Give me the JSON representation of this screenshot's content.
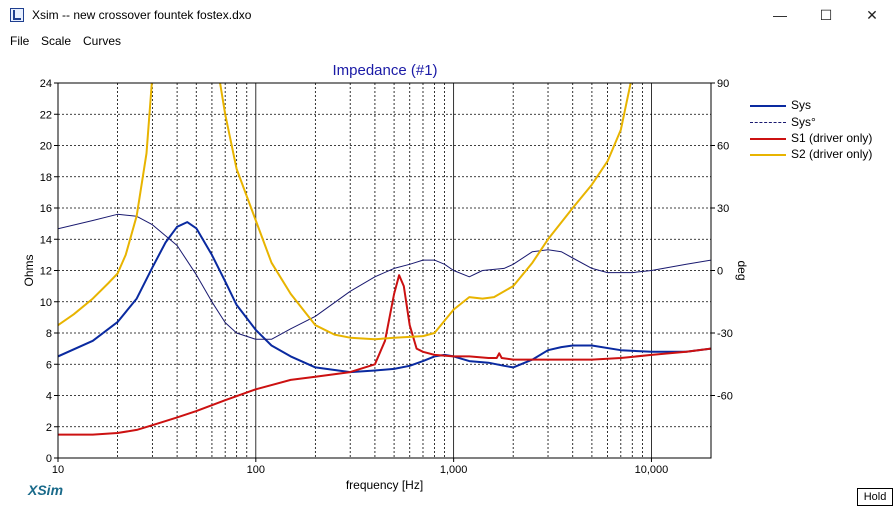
{
  "window": {
    "title": "Xsim -- new crossover fountek fostex.dxo",
    "minimize_glyph": "—",
    "maximize_glyph": "☐",
    "close_glyph": "✕"
  },
  "menu": [
    "File",
    "Scale",
    "Curves"
  ],
  "brand": "XSim",
  "hold_label": "Hold",
  "colors": {
    "sys": "#0a2aa0",
    "sys_phase": "#1a1a70",
    "s1": "#cc1111",
    "s2": "#e8b400",
    "grid": "#000000",
    "title": "#1a1aa6"
  },
  "chart_data": {
    "type": "line",
    "title": "Impedance (#1)",
    "xlabel": "frequency [Hz]",
    "ylabel": "Ohms",
    "y2label": "deg",
    "x_scale": "log",
    "xlim": [
      10,
      20000
    ],
    "ylim": [
      0,
      24
    ],
    "y2lim": [
      -90,
      90
    ],
    "x_tick_labels": [
      {
        "value": 10,
        "label": "10"
      },
      {
        "value": 100,
        "label": "100"
      },
      {
        "value": 1000,
        "label": "1,000"
      },
      {
        "value": 10000,
        "label": "10,000"
      }
    ],
    "y_ticks": [
      0,
      2,
      4,
      6,
      8,
      10,
      12,
      14,
      16,
      18,
      20,
      22,
      24
    ],
    "y2_ticks": [
      -60,
      -30,
      0,
      30,
      60,
      90
    ],
    "grid": true,
    "legend_position": "right",
    "legend": [
      "Sys",
      "Sys°",
      "S1 (driver only)",
      "S2 (driver only)"
    ],
    "series": [
      {
        "name": "Sys",
        "axis": "left",
        "points": [
          [
            10,
            6.5
          ],
          [
            15,
            7.5
          ],
          [
            20,
            8.7
          ],
          [
            25,
            10.2
          ],
          [
            30,
            12.2
          ],
          [
            35,
            13.8
          ],
          [
            40,
            14.8
          ],
          [
            45,
            15.1
          ],
          [
            50,
            14.7
          ],
          [
            60,
            13.0
          ],
          [
            70,
            11.3
          ],
          [
            80,
            9.8
          ],
          [
            100,
            8.2
          ],
          [
            120,
            7.2
          ],
          [
            150,
            6.5
          ],
          [
            200,
            5.8
          ],
          [
            300,
            5.5
          ],
          [
            400,
            5.6
          ],
          [
            500,
            5.7
          ],
          [
            600,
            5.9
          ],
          [
            700,
            6.2
          ],
          [
            800,
            6.5
          ],
          [
            900,
            6.6
          ],
          [
            1000,
            6.5
          ],
          [
            1200,
            6.2
          ],
          [
            1500,
            6.1
          ],
          [
            1800,
            5.9
          ],
          [
            2000,
            5.8
          ],
          [
            2500,
            6.3
          ],
          [
            3000,
            6.9
          ],
          [
            3500,
            7.1
          ],
          [
            4000,
            7.2
          ],
          [
            5000,
            7.2
          ],
          [
            7000,
            6.9
          ],
          [
            10000,
            6.8
          ],
          [
            15000,
            6.8
          ],
          [
            20000,
            7.0
          ]
        ]
      },
      {
        "name": "Sys°",
        "axis": "right",
        "points": [
          [
            10,
            20
          ],
          [
            15,
            24
          ],
          [
            20,
            27
          ],
          [
            25,
            26
          ],
          [
            30,
            22
          ],
          [
            40,
            12
          ],
          [
            50,
            -2
          ],
          [
            60,
            -15
          ],
          [
            70,
            -25
          ],
          [
            80,
            -30
          ],
          [
            100,
            -33
          ],
          [
            120,
            -33
          ],
          [
            150,
            -28
          ],
          [
            200,
            -22
          ],
          [
            300,
            -10
          ],
          [
            400,
            -3
          ],
          [
            500,
            1
          ],
          [
            600,
            3
          ],
          [
            700,
            5
          ],
          [
            800,
            5
          ],
          [
            900,
            3
          ],
          [
            1000,
            0
          ],
          [
            1200,
            -3
          ],
          [
            1400,
            0
          ],
          [
            1800,
            1
          ],
          [
            2000,
            3
          ],
          [
            2500,
            9
          ],
          [
            3000,
            10
          ],
          [
            3500,
            9
          ],
          [
            4000,
            6
          ],
          [
            5000,
            1
          ],
          [
            6000,
            -1
          ],
          [
            8000,
            -1
          ],
          [
            10000,
            0
          ],
          [
            15000,
            3
          ],
          [
            20000,
            5
          ]
        ]
      },
      {
        "name": "S1 (driver only)",
        "axis": "left",
        "points": [
          [
            10,
            1.5
          ],
          [
            15,
            1.5
          ],
          [
            20,
            1.6
          ],
          [
            25,
            1.8
          ],
          [
            30,
            2.1
          ],
          [
            40,
            2.6
          ],
          [
            50,
            3.0
          ],
          [
            70,
            3.7
          ],
          [
            100,
            4.4
          ],
          [
            150,
            5.0
          ],
          [
            200,
            5.2
          ],
          [
            300,
            5.5
          ],
          [
            400,
            6.0
          ],
          [
            450,
            7.5
          ],
          [
            500,
            10.5
          ],
          [
            530,
            11.7
          ],
          [
            560,
            11.0
          ],
          [
            600,
            8.5
          ],
          [
            650,
            7.0
          ],
          [
            700,
            6.8
          ],
          [
            800,
            6.6
          ],
          [
            1000,
            6.5
          ],
          [
            1200,
            6.5
          ],
          [
            1500,
            6.4
          ],
          [
            1650,
            6.4
          ],
          [
            1700,
            6.7
          ],
          [
            1750,
            6.4
          ],
          [
            2000,
            6.3
          ],
          [
            3000,
            6.3
          ],
          [
            5000,
            6.3
          ],
          [
            7000,
            6.4
          ],
          [
            10000,
            6.6
          ],
          [
            15000,
            6.8
          ],
          [
            20000,
            7.0
          ]
        ]
      },
      {
        "name": "S2 (driver only)",
        "axis": "left",
        "points": [
          [
            10,
            8.5
          ],
          [
            12,
            9.2
          ],
          [
            15,
            10.2
          ],
          [
            18,
            11.2
          ],
          [
            20,
            11.8
          ],
          [
            22,
            13.0
          ],
          [
            25,
            15.5
          ],
          [
            28,
            19.5
          ],
          [
            30,
            24.5
          ],
          [
            65,
            24.5
          ],
          [
            70,
            22.0
          ],
          [
            80,
            18.5
          ],
          [
            100,
            15.2
          ],
          [
            120,
            12.5
          ],
          [
            150,
            10.5
          ],
          [
            200,
            8.5
          ],
          [
            250,
            7.9
          ],
          [
            300,
            7.7
          ],
          [
            400,
            7.6
          ],
          [
            500,
            7.7
          ],
          [
            700,
            7.8
          ],
          [
            800,
            8.0
          ],
          [
            1000,
            9.5
          ],
          [
            1200,
            10.3
          ],
          [
            1400,
            10.2
          ],
          [
            1600,
            10.3
          ],
          [
            2000,
            11.0
          ],
          [
            2500,
            12.5
          ],
          [
            3000,
            14.0
          ],
          [
            4000,
            16.0
          ],
          [
            5000,
            17.5
          ],
          [
            6000,
            19.0
          ],
          [
            7000,
            21.0
          ],
          [
            8000,
            24.5
          ]
        ]
      }
    ]
  }
}
